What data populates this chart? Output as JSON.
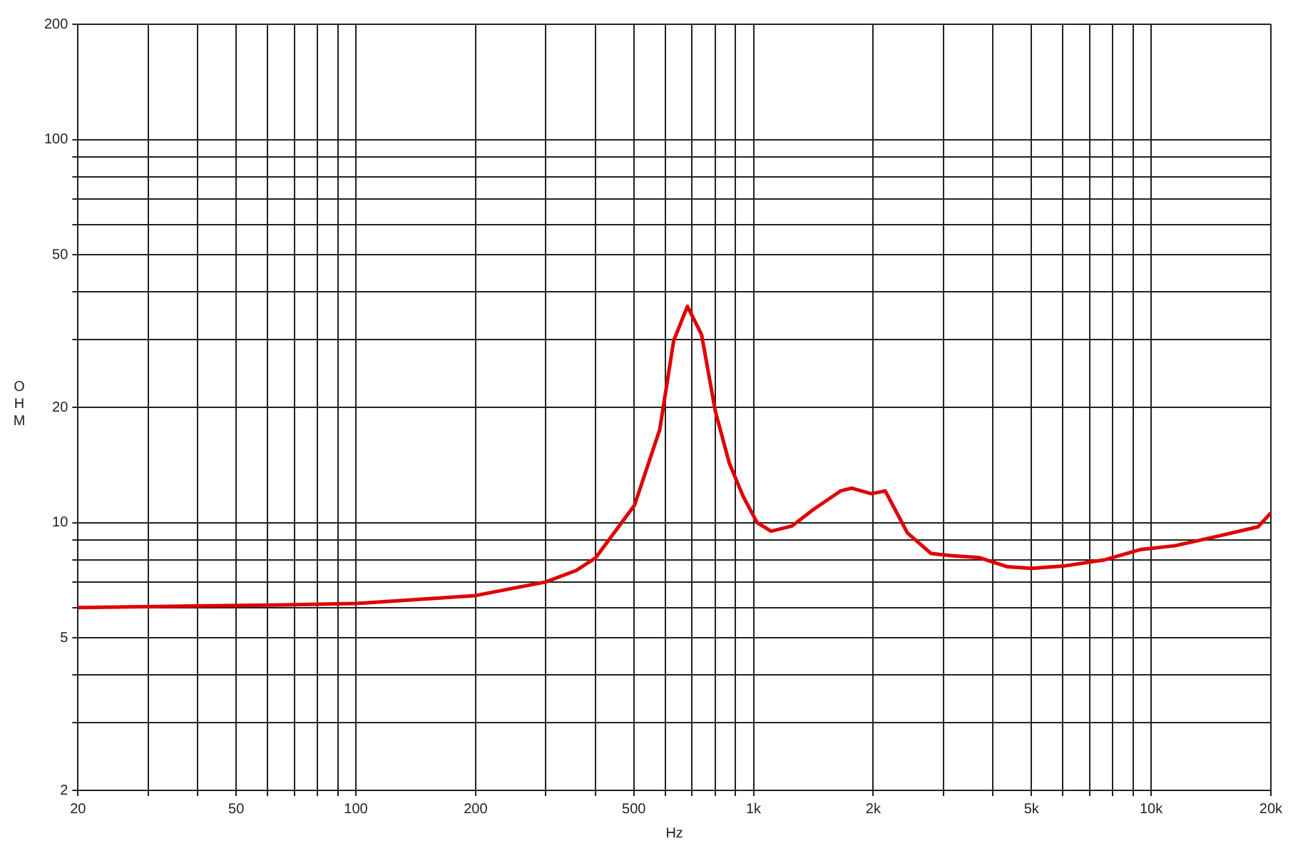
{
  "chart_data": {
    "type": "line",
    "xlabel": "Hz",
    "ylabel": "OHM",
    "log": "xy",
    "grid": true,
    "legend": false,
    "marker": "none",
    "xlim": [
      20,
      20000
    ],
    "ylim": [
      2,
      200
    ],
    "xticks": [
      20,
      {
        "value": 30,
        "label": null
      },
      {
        "value": 40,
        "label": null
      },
      50,
      {
        "value": 60,
        "label": null
      },
      {
        "value": 70,
        "label": null
      },
      {
        "value": 80,
        "label": null
      },
      {
        "value": 90,
        "label": null
      },
      100,
      200,
      {
        "value": 300,
        "label": null
      },
      {
        "value": 400,
        "label": null
      },
      500,
      {
        "value": 600,
        "label": null
      },
      {
        "value": 700,
        "label": null
      },
      {
        "value": 800,
        "label": null
      },
      {
        "value": 900,
        "label": null
      },
      {
        "value": 1000,
        "label": "1k"
      },
      {
        "value": 2000,
        "label": "2k"
      },
      {
        "value": 3000,
        "label": null
      },
      {
        "value": 4000,
        "label": null
      },
      {
        "value": 5000,
        "label": "5k"
      },
      {
        "value": 6000,
        "label": null
      },
      {
        "value": 7000,
        "label": null
      },
      {
        "value": 8000,
        "label": null
      },
      {
        "value": 9000,
        "label": null
      },
      {
        "value": 10000,
        "label": "10k"
      },
      {
        "value": 20000,
        "label": "20k"
      }
    ],
    "yticks": [
      2,
      {
        "value": 3,
        "label": null
      },
      {
        "value": 4,
        "label": null
      },
      5,
      {
        "value": 6,
        "label": null
      },
      {
        "value": 7,
        "label": null
      },
      {
        "value": 8,
        "label": null
      },
      {
        "value": 9,
        "label": null
      },
      10,
      20,
      {
        "value": 30,
        "label": null
      },
      {
        "value": 40,
        "label": null
      },
      50,
      {
        "value": 60,
        "label": null
      },
      {
        "value": 70,
        "label": null
      },
      {
        "value": 80,
        "label": null
      },
      {
        "value": 90,
        "label": null
      },
      100,
      200
    ],
    "x": [
      20,
      66,
      100,
      200,
      300,
      358,
      401,
      502,
      581,
      630,
      682,
      740,
      802,
      869,
      942,
      1021,
      1107,
      1250,
      1410,
      1656,
      1766,
      1979,
      2144,
      2438,
      2799,
      3156,
      3707,
      4356,
      5000,
      6015,
      7660,
      9370,
      11460,
      14590,
      18580,
      20000
    ],
    "series": [
      {
        "color": "#e00000",
        "values": [
          6.0,
          6.1,
          6.15,
          6.45,
          7.0,
          7.5,
          8.1,
          11.1,
          17.5,
          29.9,
          36.7,
          31,
          19.5,
          14.3,
          11.7,
          10.0,
          9.5,
          9.8,
          10.8,
          12.1,
          12.3,
          11.9,
          12.1,
          9.4,
          8.3,
          8.2,
          8.1,
          7.67,
          7.6,
          7.7,
          8.0,
          8.5,
          8.7,
          9.2,
          9.75,
          10.6
        ]
      }
    ]
  }
}
